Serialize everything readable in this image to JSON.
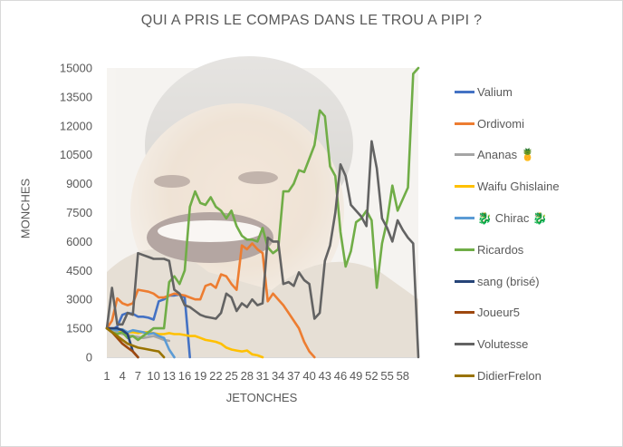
{
  "chart_data": {
    "type": "line",
    "title": "QUI A PRIS LE COMPAS DANS LE TROU A PIPI ?",
    "xlabel": "JETONCHES",
    "ylabel": "MONCHES",
    "ylim": [
      0,
      15000
    ],
    "yticks": [
      "0",
      "1500",
      "3000",
      "4500",
      "6000",
      "7500",
      "9000",
      "10500",
      "12000",
      "13500",
      "15000"
    ],
    "xlim": [
      1,
      61
    ],
    "xticks": [
      {
        "x": 1,
        "label": "1"
      },
      {
        "x": 4,
        "label": "4"
      },
      {
        "x": 7,
        "label": "7"
      },
      {
        "x": 10,
        "label": "10"
      },
      {
        "x": 13,
        "label": "13"
      },
      {
        "x": 16,
        "label": "16"
      },
      {
        "x": 19,
        "label": "19"
      },
      {
        "x": 22,
        "label": "22"
      },
      {
        "x": 25,
        "label": "25"
      },
      {
        "x": 28,
        "label": "28"
      },
      {
        "x": 31,
        "label": "31"
      },
      {
        "x": 34,
        "label": "34"
      },
      {
        "x": 37,
        "label": "37"
      },
      {
        "x": 40,
        "label": "40"
      },
      {
        "x": 43,
        "label": "43"
      },
      {
        "x": 46,
        "label": "46"
      },
      {
        "x": 49,
        "label": "49"
      },
      {
        "x": 52,
        "label": "52"
      },
      {
        "x": 55,
        "label": "55"
      },
      {
        "x": 58,
        "label": "58"
      }
    ],
    "grid": false,
    "legend_position": "right",
    "series": [
      {
        "name": "Valium",
        "color": "#4472c4",
        "points": [
          [
            1,
            1500
          ],
          [
            2,
            1400
          ],
          [
            3,
            1600
          ],
          [
            4,
            2200
          ],
          [
            5,
            2300
          ],
          [
            6,
            2250
          ],
          [
            7,
            2100
          ],
          [
            8,
            2100
          ],
          [
            9,
            2050
          ],
          [
            10,
            1950
          ],
          [
            11,
            2900
          ],
          [
            12,
            3000
          ],
          [
            13,
            3200
          ],
          [
            14,
            3200
          ],
          [
            15,
            3250
          ],
          [
            16,
            3100
          ],
          [
            17,
            0
          ]
        ]
      },
      {
        "name": "Ordivomi",
        "color": "#ed7d31",
        "points": [
          [
            1,
            1500
          ],
          [
            2,
            1900
          ],
          [
            3,
            3050
          ],
          [
            4,
            2800
          ],
          [
            5,
            2700
          ],
          [
            6,
            2800
          ],
          [
            7,
            3500
          ],
          [
            8,
            3450
          ],
          [
            9,
            3400
          ],
          [
            10,
            3300
          ],
          [
            11,
            3100
          ],
          [
            12,
            3100
          ],
          [
            13,
            3200
          ],
          [
            14,
            3300
          ],
          [
            15,
            3250
          ],
          [
            16,
            3200
          ],
          [
            17,
            3100
          ],
          [
            18,
            3000
          ],
          [
            19,
            3000
          ],
          [
            20,
            3700
          ],
          [
            21,
            3800
          ],
          [
            22,
            3600
          ],
          [
            23,
            4300
          ],
          [
            24,
            4200
          ],
          [
            25,
            3800
          ],
          [
            26,
            3500
          ],
          [
            27,
            5800
          ],
          [
            28,
            5600
          ],
          [
            29,
            5900
          ],
          [
            30,
            5600
          ],
          [
            31,
            5400
          ],
          [
            32,
            2900
          ],
          [
            33,
            3300
          ],
          [
            34,
            3000
          ],
          [
            35,
            2700
          ],
          [
            36,
            2300
          ],
          [
            37,
            1900
          ],
          [
            38,
            1500
          ],
          [
            39,
            800
          ],
          [
            40,
            300
          ],
          [
            41,
            0
          ]
        ]
      },
      {
        "name": "Ananas 🍍",
        "color": "#a5a5a5",
        "points": [
          [
            1,
            1500
          ],
          [
            2,
            1400
          ],
          [
            3,
            1300
          ],
          [
            4,
            1200
          ],
          [
            5,
            1150
          ],
          [
            6,
            1100
          ],
          [
            7,
            1050
          ],
          [
            8,
            1000
          ],
          [
            9,
            1050
          ],
          [
            10,
            1100
          ],
          [
            11,
            1000
          ],
          [
            12,
            900
          ],
          [
            13,
            850
          ]
        ]
      },
      {
        "name": "Waifu Ghislaine",
        "color": "#ffc000",
        "points": [
          [
            1,
            1500
          ],
          [
            2,
            1450
          ],
          [
            3,
            1400
          ],
          [
            4,
            1350
          ],
          [
            5,
            1300
          ],
          [
            6,
            1300
          ],
          [
            7,
            1250
          ],
          [
            8,
            1300
          ],
          [
            9,
            1300
          ],
          [
            10,
            1250
          ],
          [
            11,
            1200
          ],
          [
            12,
            1200
          ],
          [
            13,
            1250
          ],
          [
            14,
            1200
          ],
          [
            15,
            1200
          ],
          [
            16,
            1150
          ],
          [
            17,
            1100
          ],
          [
            18,
            1100
          ],
          [
            19,
            1000
          ],
          [
            20,
            900
          ],
          [
            21,
            850
          ],
          [
            22,
            800
          ],
          [
            23,
            700
          ],
          [
            24,
            500
          ],
          [
            25,
            400
          ],
          [
            26,
            350
          ],
          [
            27,
            300
          ],
          [
            28,
            350
          ],
          [
            29,
            150
          ],
          [
            30,
            100
          ],
          [
            31,
            0
          ]
        ]
      },
      {
        "name": "🐉 Chirac 🐉",
        "color": "#5b9bd5",
        "points": [
          [
            1,
            1500
          ],
          [
            2,
            1450
          ],
          [
            3,
            1400
          ],
          [
            4,
            1450
          ],
          [
            5,
            1300
          ],
          [
            6,
            1400
          ],
          [
            7,
            1350
          ],
          [
            8,
            1300
          ],
          [
            9,
            1200
          ],
          [
            10,
            1250
          ],
          [
            11,
            1100
          ],
          [
            12,
            1000
          ],
          [
            13,
            400
          ],
          [
            14,
            0
          ]
        ]
      },
      {
        "name": "Ricardos",
        "color": "#70ad47",
        "points": [
          [
            1,
            1500
          ],
          [
            2,
            1300
          ],
          [
            3,
            1200
          ],
          [
            4,
            1300
          ],
          [
            5,
            1000
          ],
          [
            6,
            1100
          ],
          [
            7,
            900
          ],
          [
            8,
            1100
          ],
          [
            9,
            1300
          ],
          [
            10,
            1500
          ],
          [
            11,
            1500
          ],
          [
            12,
            1500
          ],
          [
            13,
            3900
          ],
          [
            14,
            4200
          ],
          [
            15,
            3800
          ],
          [
            16,
            4500
          ],
          [
            17,
            7800
          ],
          [
            18,
            8600
          ],
          [
            19,
            8000
          ],
          [
            20,
            7900
          ],
          [
            21,
            8300
          ],
          [
            22,
            7800
          ],
          [
            23,
            7600
          ],
          [
            24,
            7200
          ],
          [
            25,
            7600
          ],
          [
            26,
            6800
          ],
          [
            27,
            6300
          ],
          [
            28,
            6100
          ],
          [
            29,
            6100
          ],
          [
            30,
            6000
          ],
          [
            31,
            6700
          ],
          [
            32,
            5700
          ],
          [
            33,
            5400
          ],
          [
            34,
            5600
          ],
          [
            35,
            8600
          ],
          [
            36,
            8600
          ],
          [
            37,
            9000
          ],
          [
            38,
            9700
          ],
          [
            39,
            9600
          ],
          [
            40,
            10300
          ],
          [
            41,
            11000
          ],
          [
            42,
            12800
          ],
          [
            43,
            12500
          ],
          [
            44,
            9900
          ],
          [
            45,
            9400
          ],
          [
            46,
            6500
          ],
          [
            47,
            4700
          ],
          [
            48,
            5500
          ],
          [
            49,
            7000
          ],
          [
            50,
            7200
          ],
          [
            51,
            7600
          ],
          [
            52,
            7100
          ],
          [
            53,
            3600
          ],
          [
            54,
            5900
          ],
          [
            55,
            7100
          ],
          [
            56,
            8900
          ],
          [
            57,
            7600
          ],
          [
            58,
            8200
          ],
          [
            59,
            8800
          ],
          [
            60,
            14700
          ],
          [
            61,
            15000
          ]
        ]
      },
      {
        "name": "sang (brisé)",
        "color": "#264478",
        "points": [
          [
            1,
            1500
          ],
          [
            2,
            1500
          ],
          [
            3,
            1500
          ],
          [
            4,
            1400
          ],
          [
            5,
            1200
          ],
          [
            6,
            300
          ],
          [
            7,
            0
          ]
        ]
      },
      {
        "name": "Joueur5",
        "color": "#9e480e",
        "points": [
          [
            1,
            1500
          ],
          [
            2,
            1300
          ],
          [
            3,
            1000
          ],
          [
            4,
            700
          ],
          [
            5,
            500
          ],
          [
            6,
            300
          ],
          [
            7,
            0
          ]
        ]
      },
      {
        "name": "Volutesse",
        "color": "#636363",
        "points": [
          [
            1,
            1500
          ],
          [
            2,
            3600
          ],
          [
            3,
            1700
          ],
          [
            4,
            1700
          ],
          [
            5,
            2300
          ],
          [
            6,
            2200
          ],
          [
            7,
            5400
          ],
          [
            8,
            5300
          ],
          [
            9,
            5200
          ],
          [
            10,
            5100
          ],
          [
            11,
            5100
          ],
          [
            12,
            5100
          ],
          [
            13,
            5000
          ],
          [
            14,
            3500
          ],
          [
            15,
            3300
          ],
          [
            16,
            2700
          ],
          [
            17,
            2600
          ],
          [
            18,
            2400
          ],
          [
            19,
            2200
          ],
          [
            20,
            2100
          ],
          [
            21,
            2050
          ],
          [
            22,
            2000
          ],
          [
            23,
            2300
          ],
          [
            24,
            3300
          ],
          [
            25,
            3100
          ],
          [
            26,
            2400
          ],
          [
            27,
            2800
          ],
          [
            28,
            2600
          ],
          [
            29,
            3000
          ],
          [
            30,
            2700
          ],
          [
            31,
            2800
          ],
          [
            32,
            6200
          ],
          [
            33,
            6000
          ],
          [
            34,
            6000
          ],
          [
            35,
            3800
          ],
          [
            36,
            3900
          ],
          [
            37,
            3700
          ],
          [
            38,
            4400
          ],
          [
            39,
            4000
          ],
          [
            40,
            3800
          ],
          [
            41,
            2000
          ],
          [
            42,
            2300
          ],
          [
            43,
            5000
          ],
          [
            44,
            5800
          ],
          [
            45,
            7500
          ],
          [
            46,
            10000
          ],
          [
            47,
            9400
          ],
          [
            48,
            7900
          ],
          [
            49,
            7600
          ],
          [
            50,
            7300
          ],
          [
            51,
            6800
          ],
          [
            52,
            11200
          ],
          [
            53,
            9800
          ],
          [
            54,
            7200
          ],
          [
            55,
            6700
          ],
          [
            56,
            6000
          ],
          [
            57,
            7100
          ],
          [
            58,
            6600
          ],
          [
            59,
            6200
          ],
          [
            60,
            5900
          ],
          [
            61,
            0
          ]
        ]
      },
      {
        "name": "DidierFrelon",
        "color": "#997300",
        "points": [
          [
            1,
            1500
          ],
          [
            2,
            1300
          ],
          [
            3,
            1100
          ],
          [
            4,
            900
          ],
          [
            5,
            700
          ],
          [
            6,
            600
          ],
          [
            7,
            500
          ],
          [
            8,
            450
          ],
          [
            9,
            400
          ],
          [
            10,
            350
          ],
          [
            11,
            300
          ],
          [
            12,
            0
          ]
        ]
      }
    ]
  }
}
